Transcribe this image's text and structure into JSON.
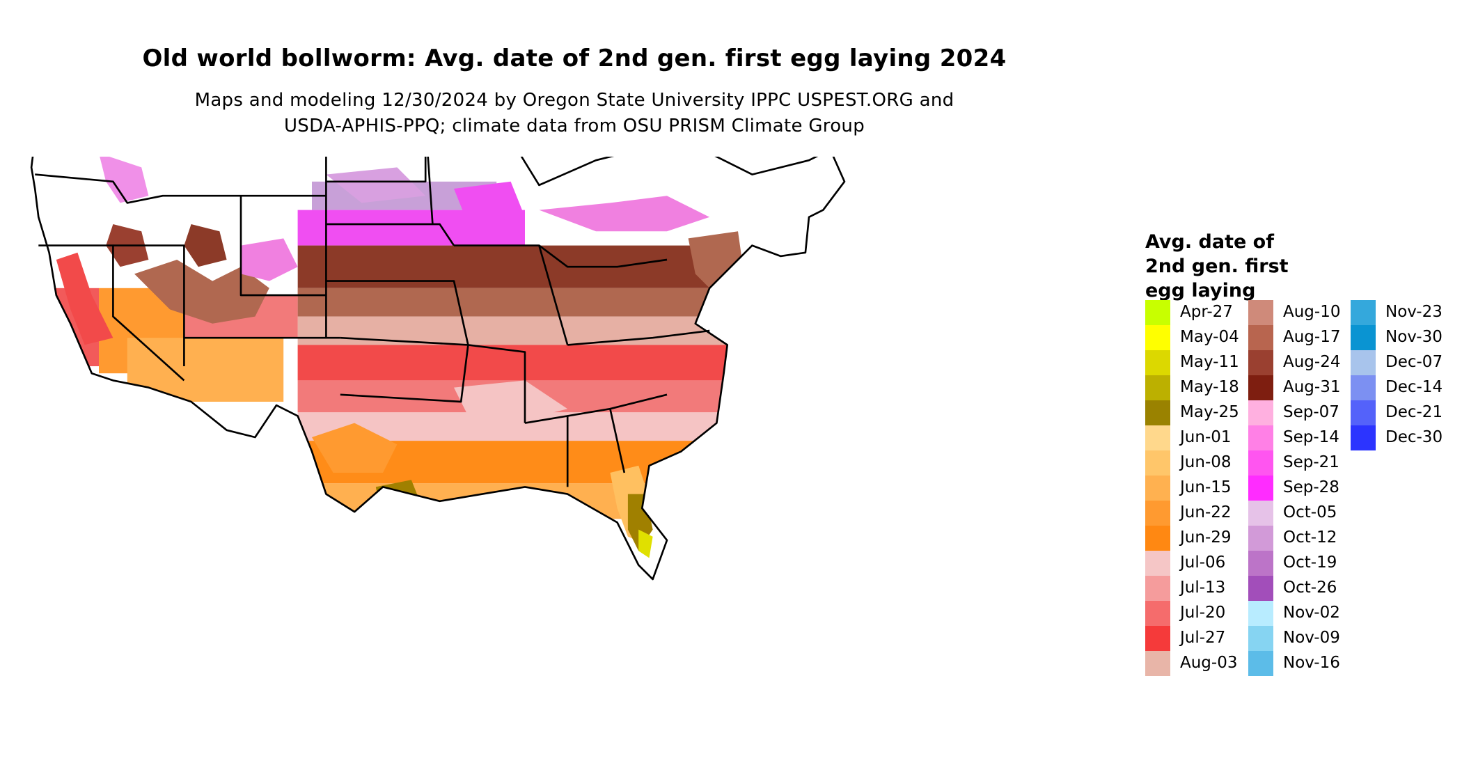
{
  "title": "Old world bollworm: Avg. date of 2nd gen. first egg laying 2024",
  "subtitle": {
    "line1": "Maps and modeling 12/30/2024 by Oregon State University IPPC USPEST.ORG and",
    "line2": "USDA-APHIS-PPQ; climate data from OSU PRISM Climate Group"
  },
  "legend": {
    "title_lines": [
      "Avg. date of",
      "2nd gen. first",
      "egg laying"
    ],
    "columns": [
      [
        {
          "label": "Apr-27",
          "color": "#c8ff00"
        },
        {
          "label": "May-04",
          "color": "#ffff00"
        },
        {
          "label": "May-11",
          "color": "#dcd800"
        },
        {
          "label": "May-18",
          "color": "#bcb000"
        },
        {
          "label": "May-25",
          "color": "#9a8200"
        },
        {
          "label": "Jun-01",
          "color": "#ffd88c"
        },
        {
          "label": "Jun-08",
          "color": "#ffc66a"
        },
        {
          "label": "Jun-15",
          "color": "#ffb150"
        },
        {
          "label": "Jun-22",
          "color": "#ff9a30"
        },
        {
          "label": "Jun-29",
          "color": "#ff8812"
        },
        {
          "label": "Jul-06",
          "color": "#f5c6c6"
        },
        {
          "label": "Jul-13",
          "color": "#f59c9c"
        },
        {
          "label": "Jul-20",
          "color": "#f56c6c"
        },
        {
          "label": "Jul-27",
          "color": "#f53a3a"
        },
        {
          "label": "Aug-03",
          "color": "#e8b5a8"
        }
      ],
      [
        {
          "label": "Aug-10",
          "color": "#cf8a7a"
        },
        {
          "label": "Aug-17",
          "color": "#b8654f"
        },
        {
          "label": "Aug-24",
          "color": "#9a4030"
        },
        {
          "label": "Aug-31",
          "color": "#7e1e10"
        },
        {
          "label": "Sep-07",
          "color": "#ffb0e0"
        },
        {
          "label": "Sep-14",
          "color": "#ff80e6"
        },
        {
          "label": "Sep-21",
          "color": "#ff55f0"
        },
        {
          "label": "Sep-28",
          "color": "#ff2cff"
        },
        {
          "label": "Oct-05",
          "color": "#e6c2e8"
        },
        {
          "label": "Oct-12",
          "color": "#d29ad8"
        },
        {
          "label": "Oct-19",
          "color": "#bc74c8"
        },
        {
          "label": "Oct-26",
          "color": "#a24eba"
        },
        {
          "label": "Nov-02",
          "color": "#b8ecff"
        },
        {
          "label": "Nov-09",
          "color": "#86d4f2"
        },
        {
          "label": "Nov-16",
          "color": "#5cbce8"
        }
      ],
      [
        {
          "label": "Nov-23",
          "color": "#34a8dc"
        },
        {
          "label": "Nov-30",
          "color": "#0a94d2"
        },
        {
          "label": "Dec-07",
          "color": "#a8c4ec"
        },
        {
          "label": "Dec-14",
          "color": "#7c90f2"
        },
        {
          "label": "Dec-21",
          "color": "#5462fa"
        },
        {
          "label": "Dec-30",
          "color": "#2c34ff"
        }
      ]
    ]
  },
  "map": {
    "background": "#ffffff",
    "border_color": "#000000"
  }
}
